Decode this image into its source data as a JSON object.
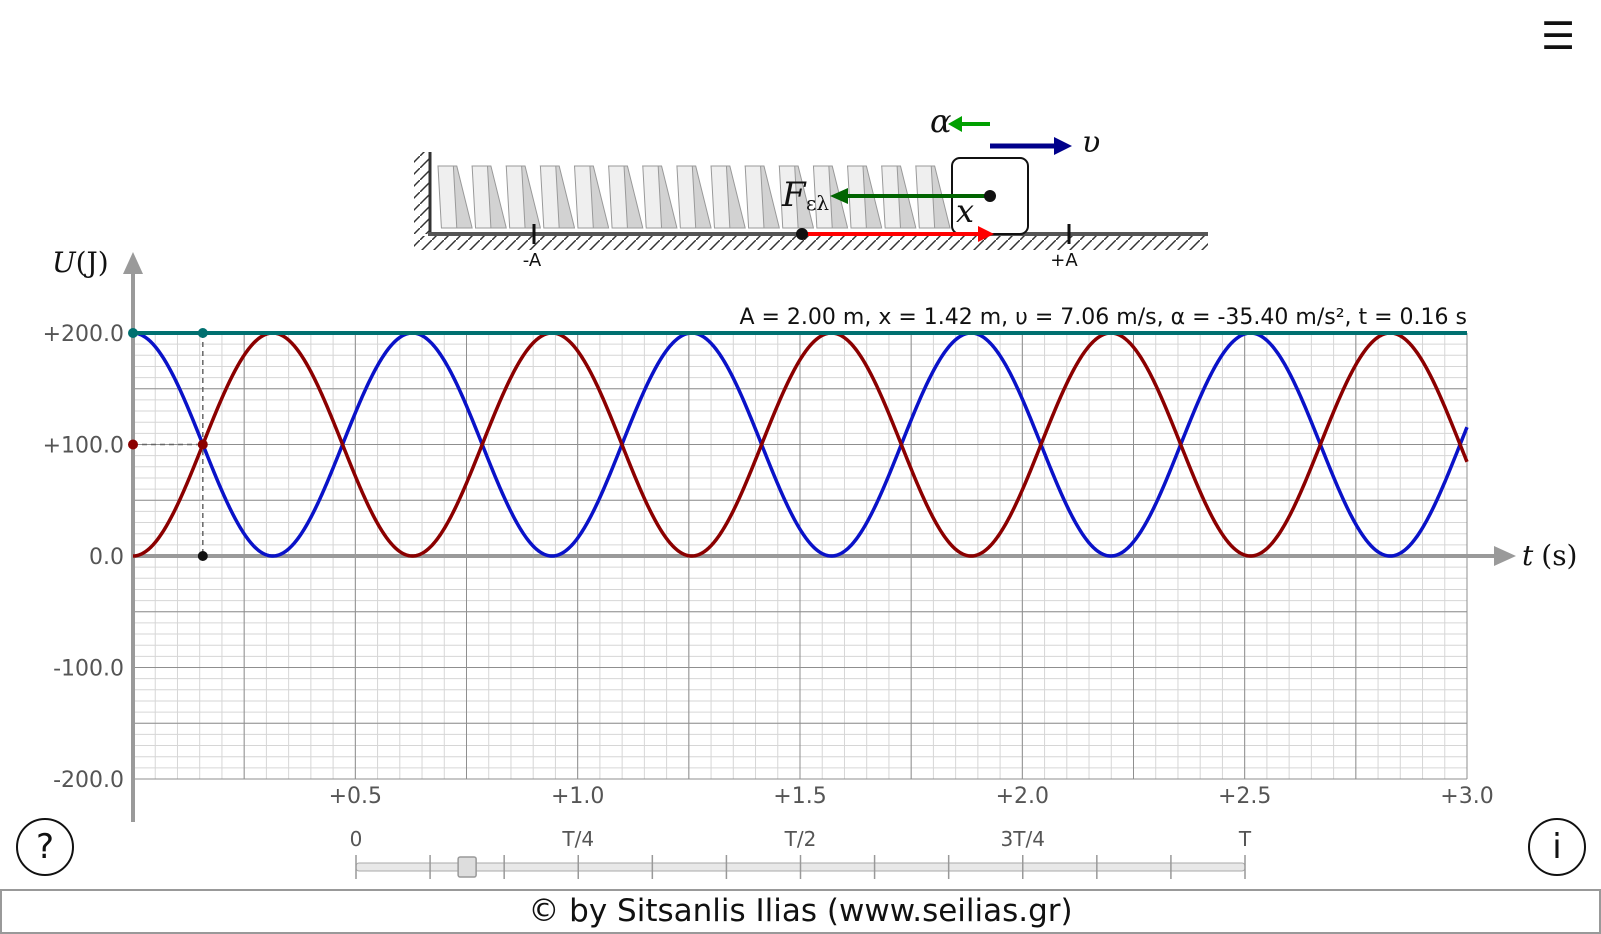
{
  "menu_icon": "hamburger-menu-icon",
  "help_label": "?",
  "info_label": "i",
  "footer_text": "© by Sitsanlis Ilias (www.seilias.gr)",
  "mechanism": {
    "alpha_label": "α",
    "velocity_label": "υ",
    "force_label": "F",
    "force_subscript": "ελ",
    "x_label": "x",
    "minus_A": "-A",
    "plus_A": "+A"
  },
  "readout": "A = 2.00 m, x = 1.42 m, υ = 7.06 m/s, α = -35.40 m/s², t = 0.16 s",
  "slider": {
    "ticks": [
      "0",
      "T/4",
      "T/2",
      "3T/4",
      "T"
    ],
    "position_fraction": 0.125
  },
  "colors": {
    "kinetic": "#0a12c8",
    "potential": "#8b0000",
    "total": "#007070",
    "force": "#007000",
    "velocity": "#00008b",
    "accel": "#00a000",
    "displacement": "#ff0000"
  },
  "chart_data": {
    "type": "line",
    "ylabel_main": "U",
    "ylabel_unit": "(J)",
    "xlabel_main": "t",
    "xlabel_unit": "(s)",
    "xlim": [
      0,
      3.0
    ],
    "ylim": [
      -200,
      200
    ],
    "x_ticks": [
      "+0.5",
      "+1.0",
      "+1.5",
      "+2.0",
      "+2.5",
      "+3.0"
    ],
    "y_ticks": [
      "+200.0",
      "+100.0",
      "0.0",
      "-100.0",
      "-200.0"
    ],
    "grid": true,
    "period_s": 1.2566,
    "energy_total": 200,
    "marker_t": 0.157,
    "marker_U": 100,
    "series": [
      {
        "key": "kinetic",
        "color_key": "kinetic",
        "formula": "E*cos^2(2*pi*t/T)"
      },
      {
        "key": "potential",
        "color_key": "potential",
        "formula": "E*sin^2(2*pi*t/T)"
      },
      {
        "key": "total",
        "color_key": "total",
        "formula": "E"
      }
    ]
  }
}
